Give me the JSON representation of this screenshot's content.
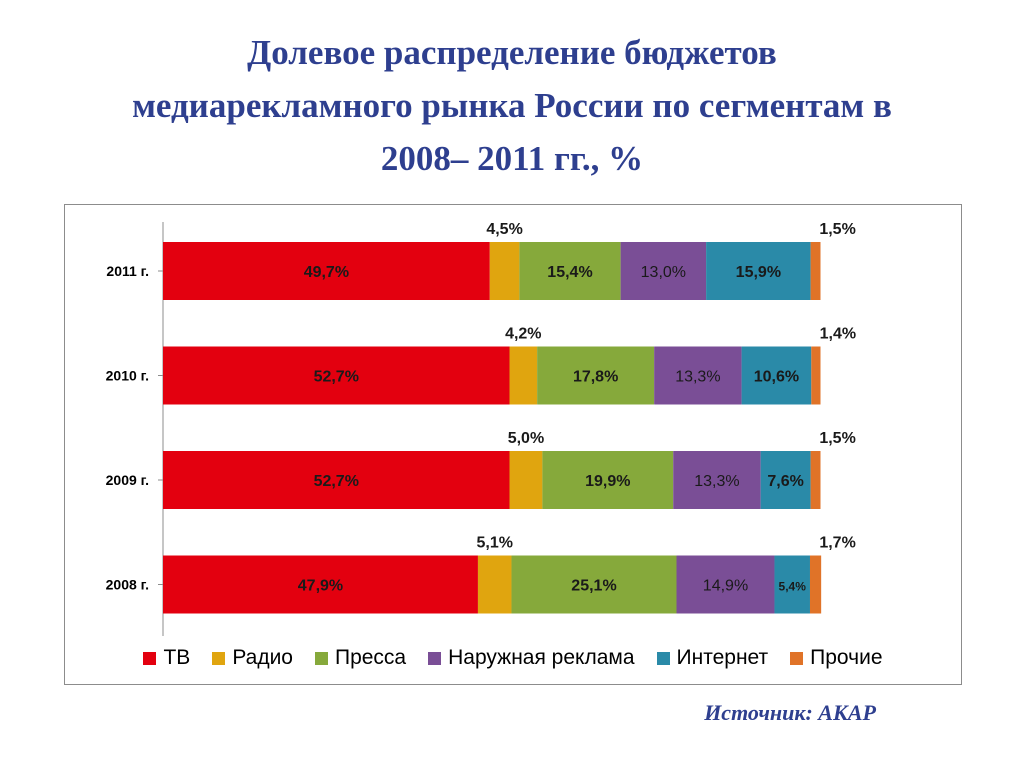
{
  "title_lines": [
    "Долевое распределение бюджетов",
    "медиарекламного рынка России по сегментам в",
    "2008– 2011 гг., %"
  ],
  "source": "Источник: АКАР",
  "chart_data": {
    "type": "bar",
    "orientation": "horizontal",
    "stacked": true,
    "title": "Долевое распределение бюджетов медиарекламного рынка России по сегментам в 2008– 2011 гг., %",
    "categories": [
      "2011 г.",
      "2010 г.",
      "2009 г.",
      "2008 г."
    ],
    "xlim": [
      0,
      100
    ],
    "grid": false,
    "legend_position": "bottom",
    "series": [
      {
        "name": "ТВ",
        "color": "#e3000f",
        "values": [
          49.7,
          52.7,
          52.7,
          47.9
        ],
        "labels": [
          "49,7%",
          "52,7%",
          "52,7%",
          "47,9%"
        ]
      },
      {
        "name": "Радио",
        "color": "#e0a50f",
        "values": [
          4.5,
          4.2,
          5.0,
          5.1
        ],
        "labels": [
          "4,5%",
          "4,2%",
          "5,0%",
          "5,1%"
        ]
      },
      {
        "name": "Пресса",
        "color": "#86a93b",
        "values": [
          15.4,
          17.8,
          19.9,
          25.1
        ],
        "labels": [
          "15,4%",
          "17,8%",
          "19,9%",
          "25,1%"
        ]
      },
      {
        "name": "Наружная реклама",
        "color": "#7a4e96",
        "values": [
          13.0,
          13.3,
          13.3,
          14.9
        ],
        "labels": [
          "13,0%",
          "13,3%",
          "13,3%",
          "14,9%"
        ]
      },
      {
        "name": "Интернет",
        "color": "#2a8aa8",
        "values": [
          15.9,
          10.6,
          7.6,
          5.4
        ],
        "labels": [
          "15,9%",
          "10,6%",
          "7,6%",
          "5,4%"
        ]
      },
      {
        "name": "Прочие",
        "color": "#e07328",
        "values": [
          1.5,
          1.4,
          1.5,
          1.7
        ],
        "labels": [
          "1,5%",
          "1,4%",
          "1,5%",
          "1,7%"
        ]
      }
    ]
  }
}
